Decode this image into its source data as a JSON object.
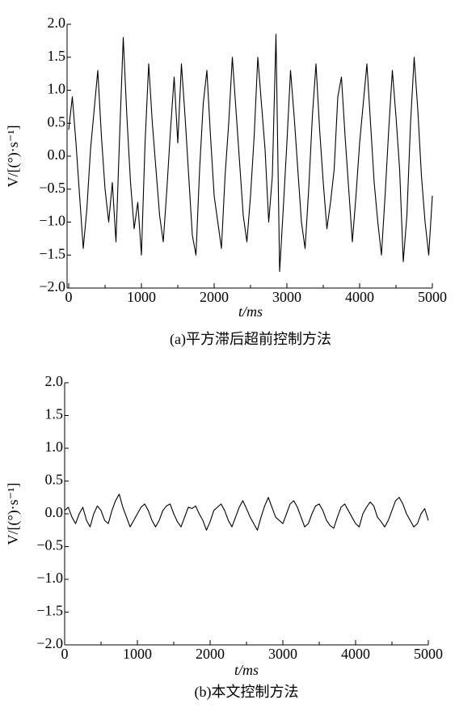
{
  "chart_data": [
    {
      "type": "line",
      "caption": "(a)平方滞后超前控制方法",
      "xlabel": "t/ms",
      "ylabel": "V/[(°)·s⁻¹]",
      "color": "#000000",
      "xlim": [
        0,
        5000
      ],
      "xticks": [
        0,
        1000,
        2000,
        3000,
        4000,
        5000
      ],
      "xminorticks": [
        500,
        1500,
        2500,
        3500,
        4500
      ],
      "ylim": [
        -2,
        2
      ],
      "yticks": [
        {
          "value": -2,
          "label": "−2.0"
        },
        {
          "value": -1.5,
          "label": "−1.5"
        },
        {
          "value": -1,
          "label": "−1.0"
        },
        {
          "value": -0.5,
          "label": "−0.5"
        },
        {
          "value": 0,
          "label": "0.0"
        },
        {
          "value": 0.5,
          "label": "0.5"
        },
        {
          "value": 1,
          "label": "1.0"
        },
        {
          "value": 1.5,
          "label": "1.5"
        },
        {
          "value": 2,
          "label": "2.0"
        }
      ],
      "x": [
        0,
        50,
        100,
        150,
        200,
        250,
        300,
        350,
        400,
        450,
        500,
        550,
        600,
        650,
        700,
        750,
        800,
        850,
        900,
        950,
        1000,
        1050,
        1100,
        1150,
        1200,
        1250,
        1300,
        1350,
        1400,
        1450,
        1500,
        1550,
        1600,
        1650,
        1700,
        1750,
        1800,
        1850,
        1900,
        1950,
        2000,
        2050,
        2100,
        2150,
        2200,
        2250,
        2300,
        2350,
        2400,
        2450,
        2500,
        2550,
        2600,
        2650,
        2700,
        2750,
        2800,
        2850,
        2900,
        2950,
        3000,
        3050,
        3100,
        3150,
        3200,
        3250,
        3300,
        3350,
        3400,
        3450,
        3500,
        3550,
        3600,
        3650,
        3700,
        3750,
        3800,
        3850,
        3900,
        3950,
        4000,
        4050,
        4100,
        4150,
        4200,
        4250,
        4300,
        4350,
        4400,
        4450,
        4500,
        4550,
        4600,
        4650,
        4700,
        4750,
        4800,
        4850,
        4900,
        4950,
        5000
      ],
      "values": [
        0.4,
        0.9,
        0.2,
        -0.6,
        -1.4,
        -0.8,
        0.1,
        0.7,
        1.3,
        0.3,
        -0.5,
        -1.0,
        -0.4,
        -1.3,
        0.3,
        1.8,
        0.6,
        -0.4,
        -1.1,
        -0.7,
        -1.5,
        0.2,
        1.4,
        0.5,
        -0.2,
        -0.9,
        -1.3,
        -0.5,
        0.4,
        1.2,
        0.2,
        1.4,
        0.6,
        -0.3,
        -1.2,
        -1.5,
        -0.2,
        0.8,
        1.3,
        0.3,
        -0.6,
        -1.0,
        -1.4,
        -0.3,
        0.5,
        1.5,
        0.7,
        -0.1,
        -0.9,
        -1.3,
        -0.6,
        0.3,
        1.5,
        0.8,
        0.1,
        -1.0,
        -0.3,
        1.85,
        -1.75,
        -0.8,
        0.2,
        1.3,
        0.6,
        -0.2,
        -1.0,
        -1.4,
        -0.5,
        0.6,
        1.4,
        0.4,
        -0.4,
        -1.1,
        -0.7,
        -0.2,
        0.9,
        1.2,
        0.3,
        -0.5,
        -1.3,
        -0.6,
        0.2,
        0.8,
        1.4,
        0.5,
        -0.4,
        -1.0,
        -1.5,
        -0.6,
        0.4,
        1.3,
        0.6,
        -0.2,
        -1.6,
        -0.9,
        0.5,
        1.5,
        0.7,
        -0.3,
        -1.0,
        -1.5,
        -0.6
      ]
    },
    {
      "type": "line",
      "caption": "(b)本文控制方法",
      "xlabel": "t/ms",
      "ylabel": "V/[(°)·s⁻¹]",
      "color": "#000000",
      "xlim": [
        0,
        5000
      ],
      "xticks": [
        0,
        1000,
        2000,
        3000,
        4000,
        5000
      ],
      "xminorticks": [
        500,
        1500,
        2500,
        3500,
        4500
      ],
      "ylim": [
        -2,
        2
      ],
      "yticks": [
        {
          "value": -2,
          "label": "−2.0"
        },
        {
          "value": -1.5,
          "label": "−1.5"
        },
        {
          "value": -1,
          "label": "−1.0"
        },
        {
          "value": -0.5,
          "label": "−0.5"
        },
        {
          "value": 0,
          "label": "0.0"
        },
        {
          "value": 0.5,
          "label": "0.5"
        },
        {
          "value": 1,
          "label": "1.0"
        },
        {
          "value": 1.5,
          "label": "1.5"
        },
        {
          "value": 2,
          "label": "2.0"
        }
      ],
      "x": [
        0,
        50,
        100,
        150,
        200,
        250,
        300,
        350,
        400,
        450,
        500,
        550,
        600,
        650,
        700,
        750,
        800,
        850,
        900,
        950,
        1000,
        1050,
        1100,
        1150,
        1200,
        1250,
        1300,
        1350,
        1400,
        1450,
        1500,
        1550,
        1600,
        1650,
        1700,
        1750,
        1800,
        1850,
        1900,
        1950,
        2000,
        2050,
        2100,
        2150,
        2200,
        2250,
        2300,
        2350,
        2400,
        2450,
        2500,
        2550,
        2600,
        2650,
        2700,
        2750,
        2800,
        2850,
        2900,
        2950,
        3000,
        3050,
        3100,
        3150,
        3200,
        3250,
        3300,
        3350,
        3400,
        3450,
        3500,
        3550,
        3600,
        3650,
        3700,
        3750,
        3800,
        3850,
        3900,
        3950,
        4000,
        4050,
        4100,
        4150,
        4200,
        4250,
        4300,
        4350,
        4400,
        4450,
        4500,
        4550,
        4600,
        4650,
        4700,
        4750,
        4800,
        4850,
        4900,
        4950,
        5000
      ],
      "values": [
        0.05,
        0.1,
        -0.05,
        -0.15,
        0,
        0.1,
        -0.1,
        -0.2,
        0,
        0.12,
        0.05,
        -0.1,
        -0.15,
        0.05,
        0.2,
        0.3,
        0.1,
        -0.05,
        -0.2,
        -0.1,
        0,
        0.1,
        0.15,
        0.05,
        -0.1,
        -0.2,
        -0.1,
        0.05,
        0.12,
        0.15,
        0,
        -0.12,
        -0.2,
        -0.05,
        0.1,
        0.08,
        0.12,
        0,
        -0.1,
        -0.25,
        -0.12,
        0.05,
        0.1,
        0.15,
        0.05,
        -0.1,
        -0.2,
        -0.05,
        0.1,
        0.2,
        0.08,
        -0.05,
        -0.15,
        -0.25,
        -0.05,
        0.12,
        0.25,
        0.1,
        -0.05,
        -0.1,
        -0.15,
        0,
        0.15,
        0.2,
        0.1,
        -0.05,
        -0.2,
        -0.15,
        0,
        0.12,
        0.15,
        0.05,
        -0.1,
        -0.18,
        -0.22,
        -0.05,
        0.1,
        0.15,
        0.05,
        -0.05,
        -0.15,
        -0.2,
        0,
        0.1,
        0.18,
        0.12,
        -0.05,
        -0.12,
        -0.2,
        -0.1,
        0.05,
        0.2,
        0.25,
        0.15,
        0,
        -0.1,
        -0.2,
        -0.15,
        0,
        0.08,
        -0.1
      ]
    }
  ]
}
